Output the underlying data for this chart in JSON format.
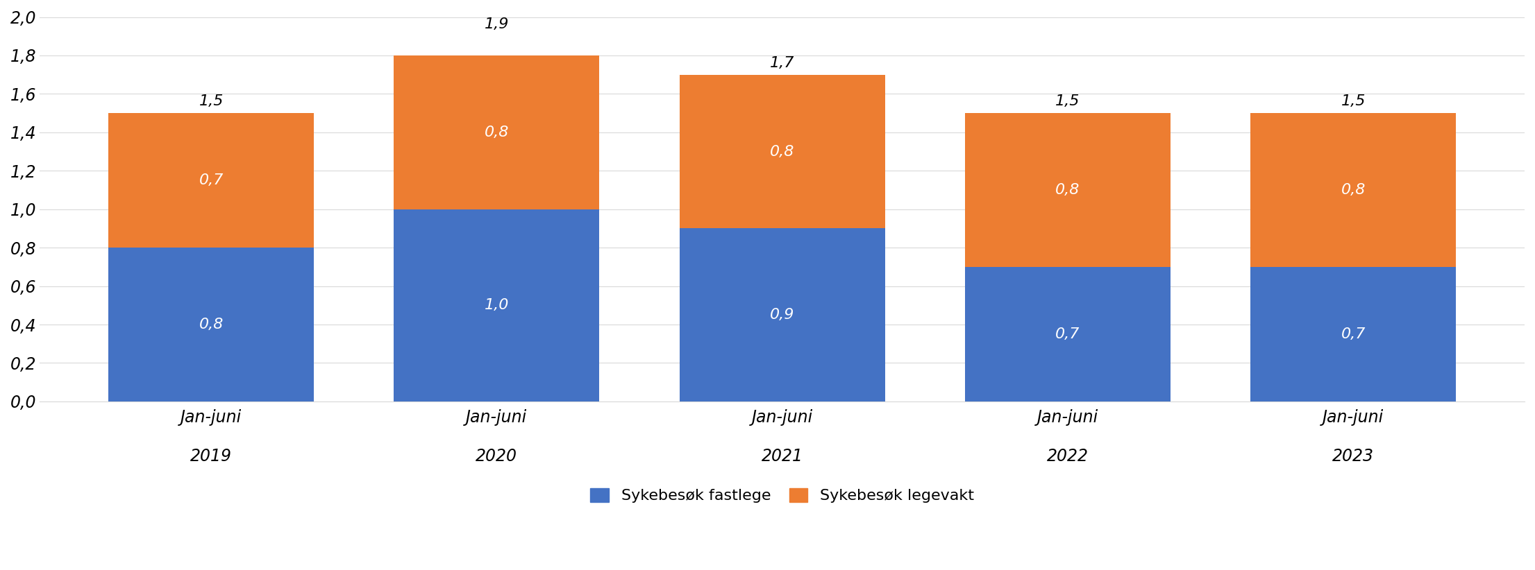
{
  "years": [
    "2019",
    "2020",
    "2021",
    "2022",
    "2023"
  ],
  "fastlege_values": [
    0.8,
    1.0,
    0.9,
    0.7,
    0.7
  ],
  "legevakt_values": [
    0.7,
    0.8,
    0.8,
    0.8,
    0.8
  ],
  "total_values": [
    1.5,
    1.9,
    1.7,
    1.5,
    1.5
  ],
  "fastlege_color": "#4472C4",
  "legevakt_color": "#ED7D31",
  "background_color": "#FFFFFF",
  "ylim": [
    0,
    2.0
  ],
  "yticks": [
    0.0,
    0.2,
    0.4,
    0.6,
    0.8,
    1.0,
    1.2,
    1.4,
    1.6,
    1.8,
    2.0
  ],
  "legend_fastlege": "Sykebesøk fastlege",
  "legend_legevakt": "Sykebesøk legevakt",
  "bar_width": 0.72,
  "grid_color": "#D9D9D9",
  "tick_label_fontsize": 17,
  "annotation_fontsize": 16,
  "total_annotation_fontsize": 16,
  "legend_fontsize": 16
}
